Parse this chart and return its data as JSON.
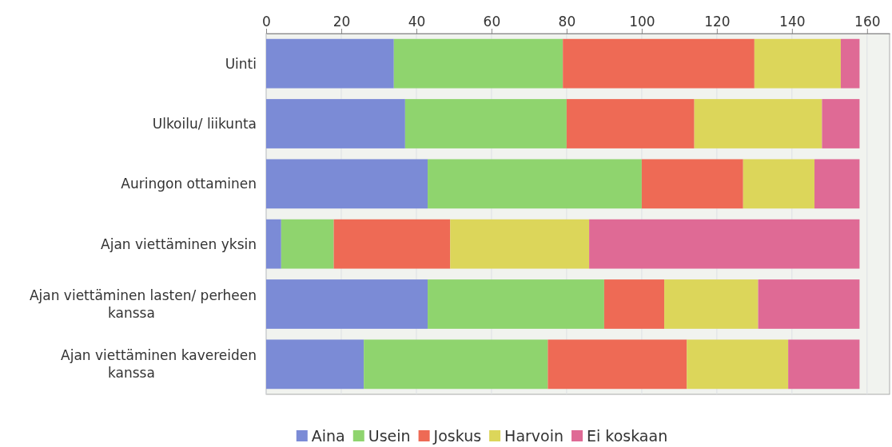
{
  "chart_data": {
    "type": "bar",
    "orientation": "horizontal",
    "stacked": true,
    "categories": [
      "Uinti",
      "Ulkoilu/ liikunta",
      "Auringon ottaminen",
      "Ajan viettäminen yksin",
      "Ajan viettäminen lasten/ perheen kanssa",
      "Ajan viettäminen kavereiden kanssa"
    ],
    "series": [
      {
        "name": "Aina",
        "color": "#7b8bd6",
        "values": [
          34,
          37,
          43,
          4,
          43,
          26
        ]
      },
      {
        "name": "Usein",
        "color": "#8fd46e",
        "values": [
          45,
          43,
          57,
          14,
          47,
          49
        ]
      },
      {
        "name": "Joskus",
        "color": "#ee6a55",
        "values": [
          51,
          34,
          27,
          31,
          16,
          37
        ]
      },
      {
        "name": "Harvoin",
        "color": "#dcd65a",
        "values": [
          23,
          34,
          19,
          37,
          25,
          27
        ]
      },
      {
        "name": "Ei koskaan",
        "color": "#df6a95",
        "values": [
          5,
          10,
          12,
          72,
          27,
          19
        ]
      }
    ],
    "xlim": [
      0,
      166
    ],
    "xticks": [
      0,
      20,
      40,
      60,
      80,
      100,
      120,
      140,
      160
    ],
    "grid": "x",
    "legend": "bottom"
  }
}
